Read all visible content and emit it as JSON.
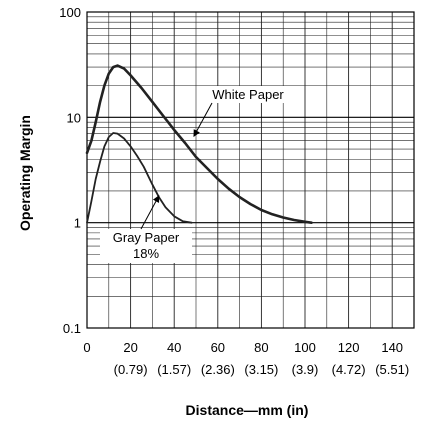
{
  "chart_data": {
    "type": "line",
    "title": "",
    "xlabel": "Distance—mm (in)",
    "ylabel": "Operating Margin",
    "xlim": [
      0,
      150
    ],
    "ylim": [
      0.1,
      100
    ],
    "yscale": "log",
    "grid": true,
    "x_ticks": [
      "0",
      "20",
      "40",
      "60",
      "80",
      "100",
      "120",
      "140"
    ],
    "x_ticks_secondary": [
      "(0.79)",
      "(1.57)",
      "(2.36)",
      "(3.15)",
      "(3.9)",
      "(4.72)",
      "(5.51)"
    ],
    "y_ticks": [
      "0.1",
      "1",
      "10",
      "100"
    ],
    "series": [
      {
        "name": "White Paper",
        "color": "#222222",
        "x": [
          0,
          2,
          4,
          6,
          8,
          10,
          12,
          14,
          17,
          20,
          25,
          30,
          35,
          40,
          45,
          50,
          55,
          60,
          65,
          70,
          75,
          80,
          85,
          90,
          95,
          100,
          103
        ],
        "y": [
          4.6,
          6,
          9,
          14,
          20,
          26,
          30,
          31,
          29,
          25,
          19,
          14,
          10.3,
          7.6,
          5.7,
          4.2,
          3.3,
          2.6,
          2.1,
          1.75,
          1.5,
          1.32,
          1.2,
          1.12,
          1.06,
          1.02,
          1.0
        ]
      },
      {
        "name": "Gray Paper 18%",
        "color": "#222222",
        "x": [
          0,
          2,
          4,
          6,
          8,
          10,
          12,
          14,
          17,
          20,
          23,
          26,
          30,
          33,
          36,
          40,
          44,
          48
        ],
        "y": [
          1.0,
          1.6,
          2.6,
          3.8,
          5.3,
          6.5,
          7.1,
          7.0,
          6.3,
          5.3,
          4.3,
          3.4,
          2.3,
          1.75,
          1.4,
          1.15,
          1.03,
          1.0
        ]
      }
    ],
    "annotations": [
      {
        "lines": [
          "White Paper"
        ],
        "series": "White Paper"
      },
      {
        "lines": [
          "Gray Paper",
          "18%"
        ],
        "series": "Gray Paper 18%"
      }
    ]
  }
}
